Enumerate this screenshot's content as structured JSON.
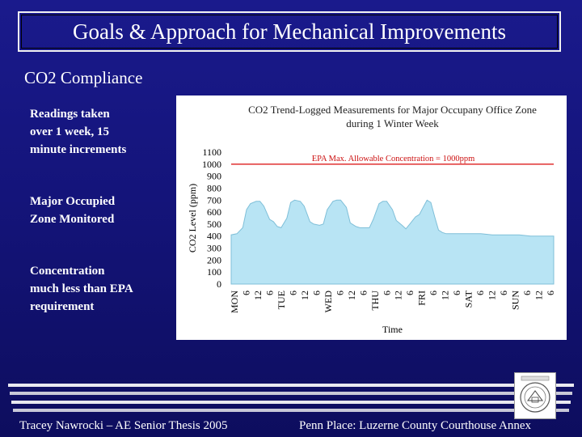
{
  "slide": {
    "title": "Goals & Approach for Mechanical Improvements",
    "subtitle": "CO2 Compliance",
    "bullets": [
      [
        "Readings taken",
        "over 1 week, 15",
        "minute increments"
      ],
      [
        "Major Occupied",
        "Zone Monitored"
      ],
      [
        "Concentration",
        "much less than EPA",
        "requirement"
      ]
    ],
    "footer_left": "Tracey Nawrocki – AE Senior Thesis 2005",
    "footer_right": "Penn Place: Luzerne County Courthouse Annex",
    "colors": {
      "background": "#14147a",
      "area_fill": "#b8e4f4",
      "limit_line": "#e03030"
    }
  },
  "chart_data": {
    "type": "area",
    "title": [
      "CO2 Trend-Logged Measurements for Major Occupany Office Zone",
      "during 1 Winter Week"
    ],
    "ylabel": "CO2 Level (ppm)",
    "xlabel": "Time",
    "ylim": [
      0,
      1100
    ],
    "yticks": [
      0,
      100,
      200,
      300,
      400,
      500,
      600,
      700,
      800,
      900,
      1000,
      1100
    ],
    "xticks": [
      "MON",
      "6",
      "12",
      "6",
      "TUE",
      "6",
      "12",
      "6",
      "WED",
      "6",
      "12",
      "6",
      "THU",
      "6",
      "12",
      "6",
      "FRI",
      "6",
      "12",
      "6",
      "SAT",
      "6",
      "12",
      "6",
      "SUN",
      "6",
      "12",
      "6"
    ],
    "limit": {
      "value": 1000,
      "label": "EPA Max. Allowable Concentration = 1000ppm"
    },
    "x_hours": [
      0,
      3,
      6,
      8,
      10,
      13,
      15,
      17,
      20,
      22,
      24,
      26,
      29,
      31,
      33,
      36,
      38,
      41,
      43,
      46,
      48,
      50,
      53,
      55,
      57,
      60,
      62,
      65,
      67,
      69,
      72,
      74,
      77,
      79,
      81,
      84,
      86,
      89,
      91,
      93,
      96,
      98,
      100,
      102,
      104,
      106,
      108,
      110,
      112,
      114,
      117,
      120,
      124,
      130,
      136,
      144,
      150,
      156,
      162,
      168
    ],
    "values": [
      410,
      420,
      470,
      620,
      670,
      690,
      690,
      650,
      540,
      520,
      480,
      470,
      550,
      680,
      700,
      690,
      650,
      520,
      500,
      490,
      500,
      620,
      690,
      700,
      700,
      640,
      510,
      480,
      470,
      470,
      470,
      540,
      670,
      690,
      690,
      620,
      530,
      490,
      460,
      500,
      560,
      580,
      640,
      700,
      680,
      560,
      450,
      430,
      420,
      420,
      420,
      420,
      420,
      420,
      410,
      410,
      410,
      400,
      400,
      400
    ]
  }
}
